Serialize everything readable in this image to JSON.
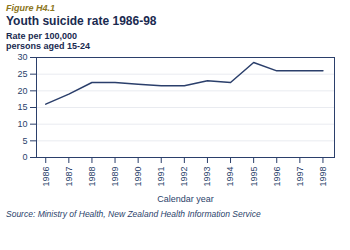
{
  "chart_data": {
    "type": "line",
    "figure_label": "Figure H4.1",
    "title": "Youth suicide rate 1986-98",
    "source": "Source: Ministry of Health, New Zealand Health Information Service",
    "xlabel": "Calendar year",
    "ylabel": "Rate per 100,000\npersons aged 15-24",
    "x": [
      1986,
      1987,
      1988,
      1989,
      1990,
      1991,
      1992,
      1993,
      1994,
      1995,
      1996,
      1997,
      1998
    ],
    "values": [
      16.0,
      19.0,
      22.5,
      22.5,
      22.0,
      21.5,
      21.5,
      23.0,
      22.5,
      28.5,
      26.0,
      26.0,
      26.0
    ],
    "color": "#2b3f6b",
    "xlim": [
      1985.6,
      1998.5
    ],
    "xticks": [
      1986,
      1987,
      1988,
      1989,
      1990,
      1991,
      1992,
      1993,
      1994,
      1995,
      1996,
      1997,
      1998
    ],
    "ylim": [
      0,
      30
    ],
    "yticks": [
      0,
      5,
      10,
      15,
      20,
      25,
      30
    ],
    "grid": true
  }
}
